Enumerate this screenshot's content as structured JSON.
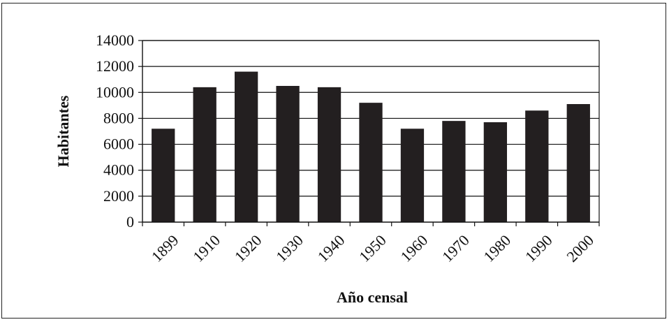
{
  "chart_data": {
    "type": "bar",
    "title": "",
    "xlabel": "Año censal",
    "ylabel": "Habitantes",
    "categories": [
      "1899",
      "1910",
      "1920",
      "1930",
      "1940",
      "1950",
      "1960",
      "1970",
      "1980",
      "1990",
      "2000"
    ],
    "values": [
      7200,
      10400,
      11600,
      10500,
      10400,
      9200,
      7200,
      7800,
      7700,
      8600,
      9100
    ],
    "ylim": [
      0,
      14000
    ],
    "yticks": [
      0,
      2000,
      4000,
      6000,
      8000,
      10000,
      12000,
      14000
    ],
    "grid": "horizontal",
    "legend": "none",
    "bar_color": "#231f20"
  }
}
